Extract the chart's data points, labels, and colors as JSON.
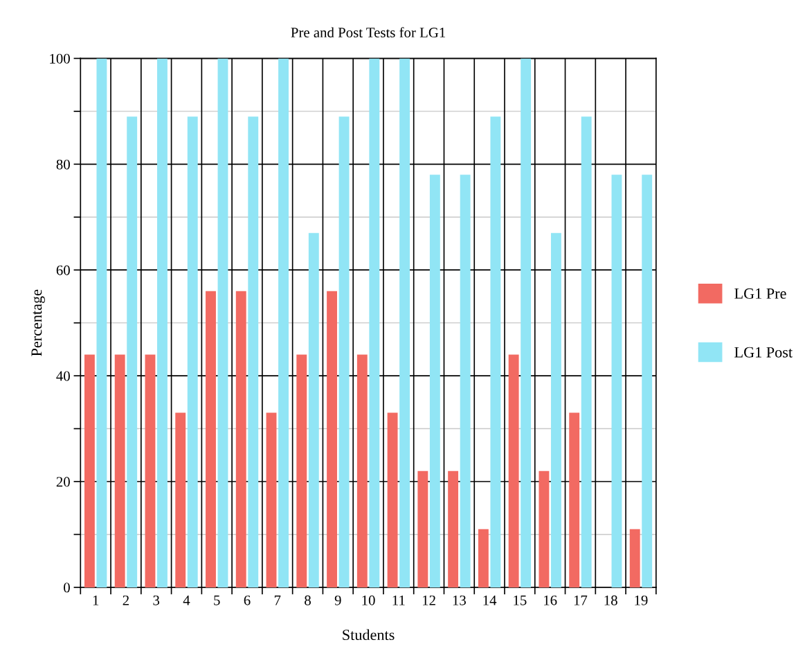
{
  "chart_data": {
    "type": "bar",
    "title": "Pre and Post Tests for LG1",
    "xlabel": "Students",
    "ylabel": "Percentage",
    "categories": [
      "1",
      "2",
      "3",
      "4",
      "5",
      "6",
      "7",
      "8",
      "9",
      "10",
      "11",
      "12",
      "13",
      "14",
      "15",
      "16",
      "17",
      "18",
      "19"
    ],
    "series": [
      {
        "name": "LG1 Pre",
        "color": "#f26a62",
        "values": [
          44,
          44,
          44,
          33,
          56,
          56,
          33,
          44,
          56,
          44,
          33,
          22,
          22,
          11,
          44,
          22,
          33,
          0,
          11
        ]
      },
      {
        "name": "LG1 Post",
        "color": "#91e5f5",
        "values": [
          100,
          89,
          100,
          89,
          100,
          89,
          100,
          67,
          89,
          100,
          100,
          78,
          78,
          89,
          100,
          67,
          89,
          78,
          78
        ]
      }
    ],
    "ylim": [
      0,
      100
    ],
    "yticks": [
      0,
      {
        "value": 10,
        "label": null
      },
      20,
      {
        "value": 30,
        "label": null
      },
      40,
      {
        "value": 50,
        "label": null
      },
      60,
      {
        "value": 70,
        "label": null
      },
      80,
      {
        "value": 90,
        "label": null
      },
      100
    ],
    "grid": true,
    "legend": "right"
  }
}
